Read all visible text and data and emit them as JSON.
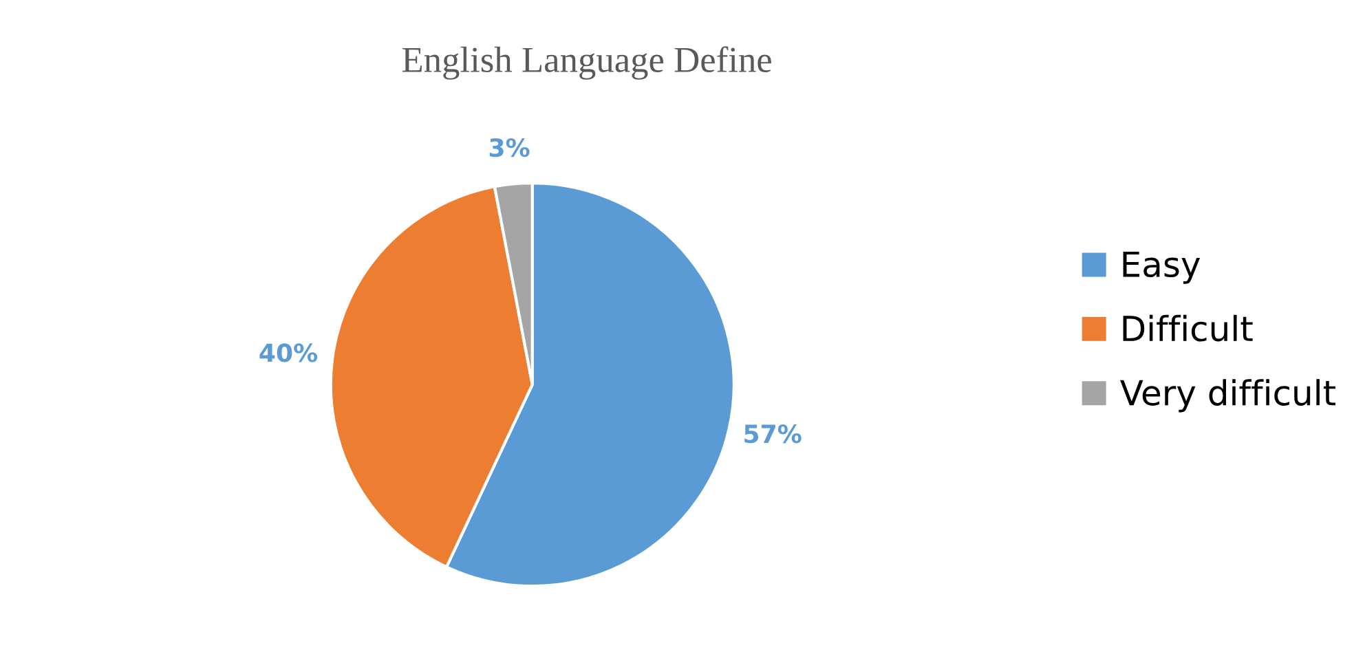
{
  "chart_data": {
    "type": "pie",
    "title": "English Language Define",
    "categories": [
      "Easy",
      "Difficult",
      "Very difficult"
    ],
    "values": [
      57,
      40,
      3
    ],
    "colors": [
      "#5b9bd5",
      "#ed7d31",
      "#a5a5a5"
    ],
    "value_labels": [
      "57%",
      "40%",
      "3%"
    ],
    "legend": "right"
  }
}
